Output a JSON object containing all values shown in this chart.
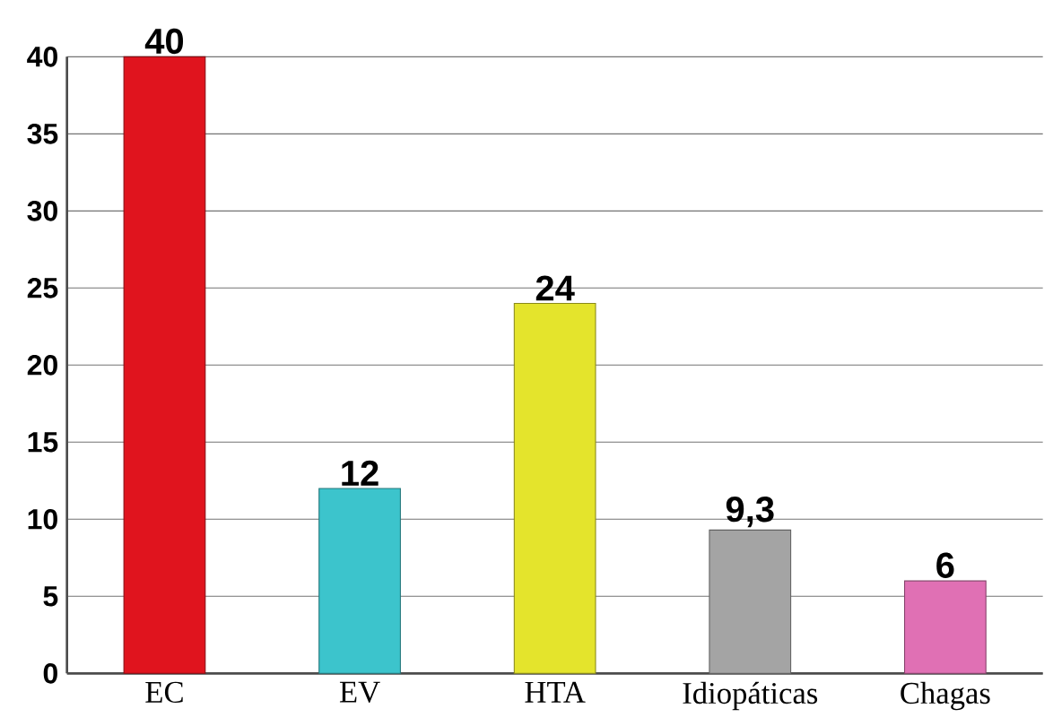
{
  "chart_data": {
    "type": "bar",
    "categories": [
      "EC",
      "EV",
      "HTA",
      "Idiopáticas",
      "Chagas"
    ],
    "values": [
      40,
      12,
      24,
      9.3,
      6
    ],
    "colors": [
      "#e0141e",
      "#3cc4cc",
      "#e4e42c",
      "#a4a4a4",
      "#e070b4"
    ],
    "value_labels": [
      "40",
      "12",
      "24",
      "9,3",
      "6"
    ],
    "ylim": [
      0,
      40
    ],
    "yticks": [
      0,
      5,
      10,
      15,
      20,
      25,
      30,
      35,
      40
    ],
    "grid": "y"
  }
}
